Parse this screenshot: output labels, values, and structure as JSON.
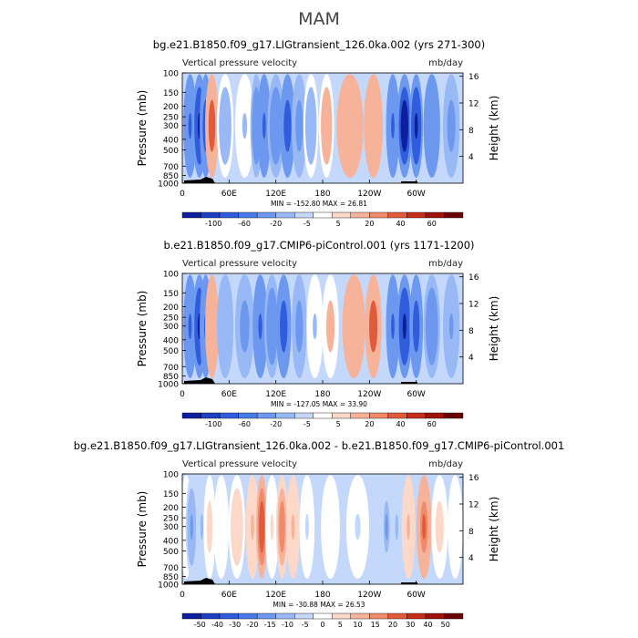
{
  "main_title": "MAM",
  "chart_data": [
    {
      "type": "heatmap",
      "title": "bg.e21.B1850.f09_g17.LIGtransient_126.0ka.002 (yrs 271-300)",
      "subtitle_left": "Vertical pressure velocity",
      "subtitle_right": "mb/day",
      "ylabel": "Pressure (mb)",
      "ylabel_right": "Height (km)",
      "x_ticks": [
        "0",
        "60E",
        "120E",
        "180",
        "120W",
        "60W"
      ],
      "y_ticks": [
        "100",
        "150",
        "200",
        "250",
        "300",
        "400",
        "500",
        "700",
        "850",
        "1000"
      ],
      "y_right_ticks": [
        "16",
        "12",
        "8",
        "4"
      ],
      "min_max": "MIN = -152.80   MAX =  26.81",
      "colorbar_labels": [
        "-100",
        "-60",
        "-20",
        "-5",
        "5",
        "20",
        "40",
        "60"
      ],
      "colorbar_colors": [
        "#0d1f9c",
        "#1f3fc2",
        "#2f5ddc",
        "#4a7ae9",
        "#6d98f0",
        "#98b9f5",
        "#c3d8fb",
        "#ffffff",
        "#fbd8c8",
        "#f7b39a",
        "#f18a6c",
        "#e25a3c",
        "#c72e17",
        "#9c1208",
        "#6b0000"
      ],
      "columns": [
        {
          "lon": 10,
          "value": -60,
          "width": 8
        },
        {
          "lon": 22,
          "value": -120,
          "width": 8
        },
        {
          "lon": 30,
          "value": -80,
          "width": 6
        },
        {
          "lon": 38,
          "value": 25,
          "width": 8
        },
        {
          "lon": 55,
          "value": -10,
          "width": 12
        },
        {
          "lon": 80,
          "value": -5,
          "width": 15
        },
        {
          "lon": 95,
          "value": -40,
          "width": 6
        },
        {
          "lon": 105,
          "value": -60,
          "width": 8
        },
        {
          "lon": 120,
          "value": -35,
          "width": 12
        },
        {
          "lon": 135,
          "value": -90,
          "width": 10
        },
        {
          "lon": 150,
          "value": -30,
          "width": 10
        },
        {
          "lon": 165,
          "value": -10,
          "width": 10
        },
        {
          "lon": 185,
          "value": 10,
          "width": 10
        },
        {
          "lon": 215,
          "value": 20,
          "width": 25
        },
        {
          "lon": 245,
          "value": 15,
          "width": 15
        },
        {
          "lon": 270,
          "value": -70,
          "width": 8
        },
        {
          "lon": 285,
          "value": -130,
          "width": 10
        },
        {
          "lon": 300,
          "value": -100,
          "width": 8
        },
        {
          "lon": 320,
          "value": -50,
          "width": 12
        },
        {
          "lon": 345,
          "value": -25,
          "width": 12
        }
      ]
    },
    {
      "type": "heatmap",
      "title": "b.e21.B1850.f09_g17.CMIP6-piControl.001 (yrs 1171-1200)",
      "subtitle_left": "Vertical pressure velocity",
      "subtitle_right": "mb/day",
      "ylabel": "Pressure (mb)",
      "ylabel_right": "Height (km)",
      "x_ticks": [
        "0",
        "60E",
        "120E",
        "180",
        "120W",
        "60W"
      ],
      "y_ticks": [
        "100",
        "150",
        "200",
        "250",
        "300",
        "400",
        "500",
        "700",
        "850",
        "1000"
      ],
      "y_right_ticks": [
        "16",
        "12",
        "8",
        "4"
      ],
      "min_max": "MIN = -127.05   MAX =  33.90",
      "colorbar_labels": [
        "-100",
        "-60",
        "-20",
        "-5",
        "5",
        "20",
        "40",
        "60"
      ],
      "colorbar_colors": [
        "#0d1f9c",
        "#1f3fc2",
        "#2f5ddc",
        "#4a7ae9",
        "#6d98f0",
        "#98b9f5",
        "#c3d8fb",
        "#ffffff",
        "#fbd8c8",
        "#f7b39a",
        "#f18a6c",
        "#e25a3c",
        "#c72e17",
        "#9c1208",
        "#6b0000"
      ],
      "columns": [
        {
          "lon": 10,
          "value": -70,
          "width": 8
        },
        {
          "lon": 22,
          "value": -110,
          "width": 8
        },
        {
          "lon": 30,
          "value": -60,
          "width": 6
        },
        {
          "lon": 38,
          "value": 20,
          "width": 8
        },
        {
          "lon": 55,
          "value": -15,
          "width": 12
        },
        {
          "lon": 80,
          "value": -25,
          "width": 15
        },
        {
          "lon": 100,
          "value": -70,
          "width": 10
        },
        {
          "lon": 115,
          "value": -40,
          "width": 10
        },
        {
          "lon": 130,
          "value": -80,
          "width": 10
        },
        {
          "lon": 150,
          "value": -30,
          "width": 10
        },
        {
          "lon": 170,
          "value": -5,
          "width": 12
        },
        {
          "lon": 190,
          "value": 8,
          "width": 12
        },
        {
          "lon": 220,
          "value": 15,
          "width": 20
        },
        {
          "lon": 245,
          "value": 25,
          "width": 12
        },
        {
          "lon": 270,
          "value": -60,
          "width": 8
        },
        {
          "lon": 285,
          "value": -120,
          "width": 10
        },
        {
          "lon": 300,
          "value": -90,
          "width": 8
        },
        {
          "lon": 320,
          "value": -45,
          "width": 12
        },
        {
          "lon": 345,
          "value": -20,
          "width": 12
        }
      ]
    },
    {
      "type": "heatmap",
      "title": "bg.e21.B1850.f09_g17.LIGtransient_126.0ka.002 - b.e21.B1850.f09_g17.CMIP6-piControl.001",
      "subtitle_left": "Vertical pressure velocity",
      "subtitle_right": "mb/day",
      "ylabel": "Pressure (mb)",
      "ylabel_right": "Height (km)",
      "x_ticks": [
        "0",
        "60E",
        "120E",
        "180",
        "120W",
        "60W"
      ],
      "y_ticks": [
        "100",
        "150",
        "200",
        "250",
        "300",
        "400",
        "500",
        "700",
        "850",
        "1000"
      ],
      "y_right_ticks": [
        "16",
        "12",
        "8",
        "4"
      ],
      "min_max": "MIN = -30.88   MAX =  26.53",
      "colorbar_labels": [
        "-50",
        "-40",
        "-30",
        "-20",
        "-15",
        "-10",
        "-5",
        "0",
        "5",
        "10",
        "15",
        "20",
        "30",
        "40",
        "50"
      ],
      "colorbar_colors": [
        "#0d1f9c",
        "#1f3fc2",
        "#2f5ddc",
        "#4a7ae9",
        "#6d98f0",
        "#98b9f5",
        "#c3d8fb",
        "#ffffff",
        "#fbd8c8",
        "#f7b39a",
        "#f18a6c",
        "#e25a3c",
        "#c72e17",
        "#9c1208",
        "#6b0000"
      ],
      "columns": [
        {
          "lon": 5,
          "value": -3,
          "width": 6
        },
        {
          "lon": 12,
          "value": -18,
          "width": 6
        },
        {
          "lon": 25,
          "value": -12,
          "width": 6
        },
        {
          "lon": 35,
          "value": 8,
          "width": 6
        },
        {
          "lon": 50,
          "value": 5,
          "width": 10
        },
        {
          "lon": 70,
          "value": 10,
          "width": 12
        },
        {
          "lon": 90,
          "value": 12,
          "width": 8
        },
        {
          "lon": 102,
          "value": 25,
          "width": 5
        },
        {
          "lon": 115,
          "value": 6,
          "width": 8
        },
        {
          "lon": 128,
          "value": 20,
          "width": 6
        },
        {
          "lon": 142,
          "value": 12,
          "width": 8
        },
        {
          "lon": 160,
          "value": -5,
          "width": 10
        },
        {
          "lon": 190,
          "value": -3,
          "width": 15
        },
        {
          "lon": 225,
          "value": -6,
          "width": 20
        },
        {
          "lon": 262,
          "value": -15,
          "width": 6
        },
        {
          "lon": 275,
          "value": -12,
          "width": 8
        },
        {
          "lon": 290,
          "value": 12,
          "width": 8
        },
        {
          "lon": 310,
          "value": 24,
          "width": 10
        },
        {
          "lon": 330,
          "value": 8,
          "width": 12
        },
        {
          "lon": 350,
          "value": -3,
          "width": 10
        }
      ]
    }
  ]
}
